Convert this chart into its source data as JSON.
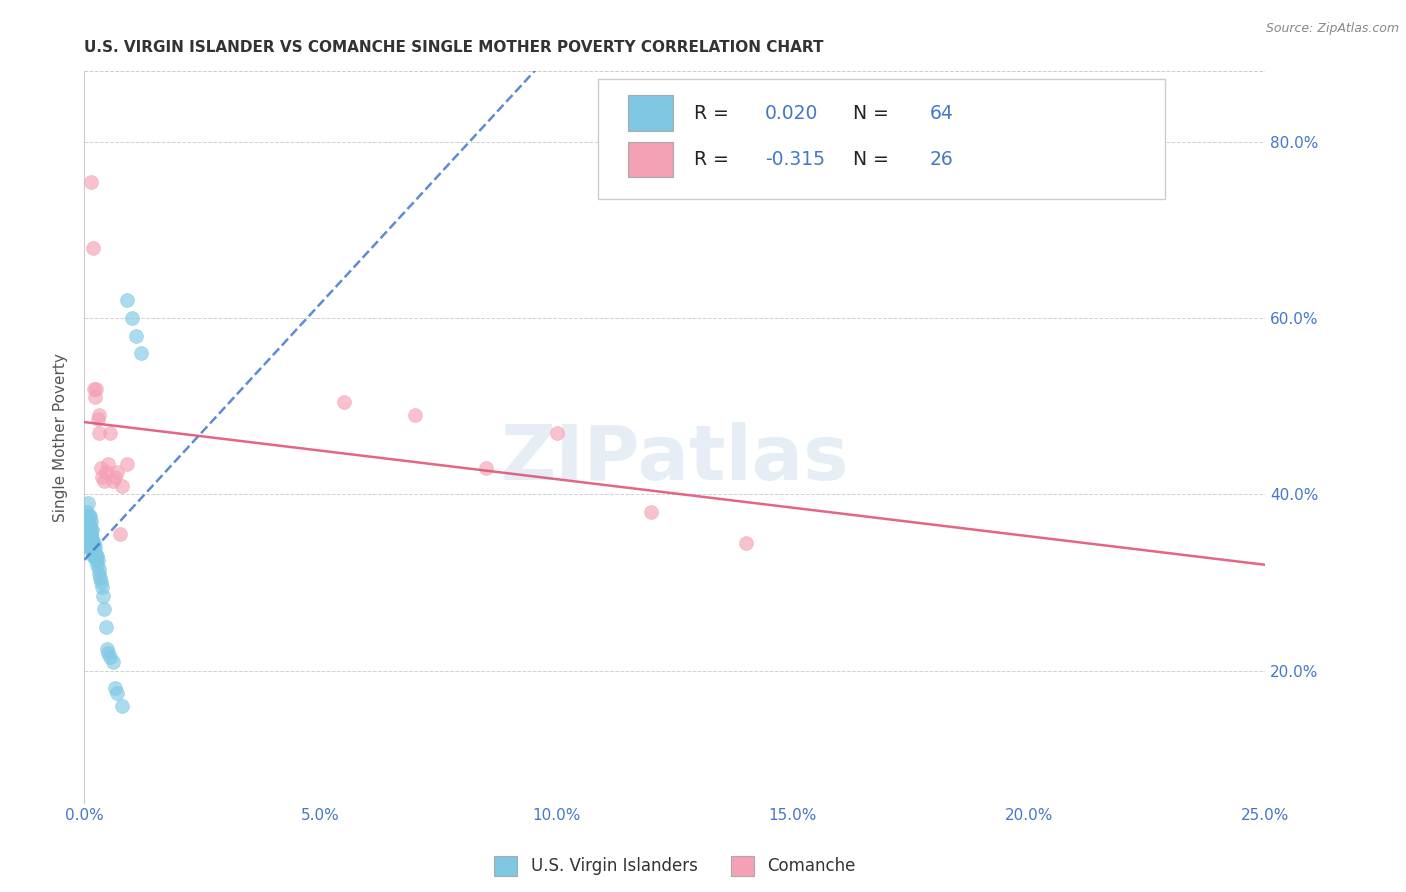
{
  "title": "U.S. VIRGIN ISLANDER VS COMANCHE SINGLE MOTHER POVERTY CORRELATION CHART",
  "source": "Source: ZipAtlas.com",
  "ylabel": "Single Mother Poverty",
  "xlim": [
    0.0,
    0.25
  ],
  "ylim": [
    0.05,
    0.88
  ],
  "xticks": [
    0.0,
    0.05,
    0.1,
    0.15,
    0.2,
    0.25
  ],
  "yticks": [
    0.2,
    0.4,
    0.6,
    0.8
  ],
  "ytick_labels": [
    "20.0%",
    "40.0%",
    "60.0%",
    "80.0%"
  ],
  "xtick_labels": [
    "0.0%",
    "5.0%",
    "10.0%",
    "15.0%",
    "20.0%",
    "25.0%"
  ],
  "legend_bottom_label1": "U.S. Virgin Islanders",
  "legend_bottom_label2": "Comanche",
  "R1": 0.02,
  "N1": 64,
  "R2": -0.315,
  "N2": 26,
  "color_blue": "#7ec8e3",
  "color_pink": "#f4a0b5",
  "color_blue_line": "#4477cc",
  "color_pink_line": "#e05578",
  "watermark": "ZIPatlas",
  "blue_points_x": [
    0.0002,
    0.0003,
    0.0004,
    0.0004,
    0.0005,
    0.0005,
    0.0006,
    0.0006,
    0.0007,
    0.0007,
    0.0008,
    0.0008,
    0.0008,
    0.0009,
    0.0009,
    0.001,
    0.001,
    0.001,
    0.0011,
    0.0011,
    0.0012,
    0.0012,
    0.0013,
    0.0013,
    0.0014,
    0.0014,
    0.0015,
    0.0015,
    0.0016,
    0.0016,
    0.0017,
    0.0017,
    0.0018,
    0.0018,
    0.0019,
    0.002,
    0.002,
    0.0021,
    0.0022,
    0.0023,
    0.0024,
    0.0025,
    0.0026,
    0.0027,
    0.0028,
    0.003,
    0.0032,
    0.0034,
    0.0036,
    0.0038,
    0.004,
    0.0042,
    0.0045,
    0.0048,
    0.005,
    0.0055,
    0.006,
    0.0065,
    0.007,
    0.008,
    0.009,
    0.01,
    0.011,
    0.012
  ],
  "blue_points_y": [
    0.355,
    0.345,
    0.375,
    0.365,
    0.37,
    0.36,
    0.38,
    0.37,
    0.39,
    0.365,
    0.355,
    0.345,
    0.34,
    0.365,
    0.35,
    0.375,
    0.36,
    0.345,
    0.375,
    0.355,
    0.365,
    0.34,
    0.36,
    0.345,
    0.355,
    0.34,
    0.37,
    0.35,
    0.36,
    0.345,
    0.35,
    0.335,
    0.345,
    0.33,
    0.34,
    0.345,
    0.33,
    0.335,
    0.34,
    0.335,
    0.33,
    0.325,
    0.33,
    0.32,
    0.325,
    0.31,
    0.315,
    0.305,
    0.3,
    0.295,
    0.285,
    0.27,
    0.25,
    0.225,
    0.22,
    0.215,
    0.21,
    0.18,
    0.175,
    0.16,
    0.62,
    0.6,
    0.58,
    0.56
  ],
  "pink_points_x": [
    0.0015,
    0.0018,
    0.002,
    0.0022,
    0.0025,
    0.0028,
    0.003,
    0.0032,
    0.0035,
    0.0038,
    0.0042,
    0.0045,
    0.005,
    0.0055,
    0.006,
    0.0065,
    0.007,
    0.0075,
    0.008,
    0.009,
    0.055,
    0.07,
    0.085,
    0.1,
    0.12,
    0.14
  ],
  "pink_points_y": [
    0.755,
    0.68,
    0.52,
    0.51,
    0.52,
    0.485,
    0.49,
    0.47,
    0.43,
    0.42,
    0.415,
    0.425,
    0.435,
    0.47,
    0.415,
    0.42,
    0.425,
    0.355,
    0.41,
    0.435,
    0.505,
    0.49,
    0.43,
    0.47,
    0.38,
    0.345
  ]
}
